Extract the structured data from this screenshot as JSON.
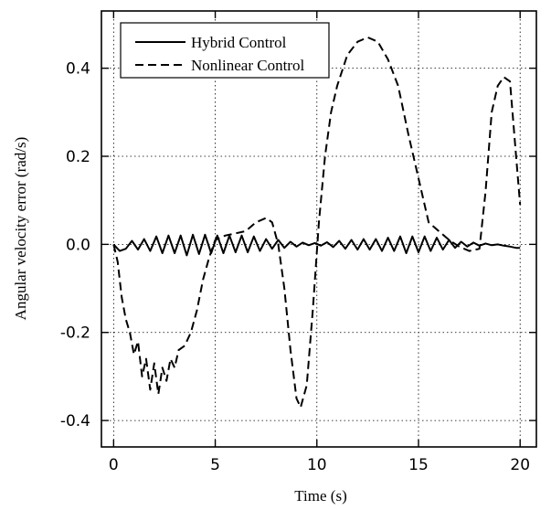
{
  "chart_data": {
    "type": "line",
    "title": "",
    "xlabel": "Time (s)",
    "ylabel": "Angular velocity error (rad/s)",
    "xlim": [
      -0.6,
      20.8
    ],
    "ylim": [
      -0.46,
      0.53
    ],
    "x_ticks": [
      0,
      5,
      10,
      15,
      20
    ],
    "y_ticks": [
      -0.4,
      -0.2,
      0.0,
      0.2,
      0.4
    ],
    "x_tick_labels": [
      "0",
      "5",
      "10",
      "15",
      "20"
    ],
    "y_tick_labels": [
      "-0.4",
      "-0.2",
      "0.0",
      "0.2",
      "0.4"
    ],
    "grid": true,
    "legend_position": "top-left",
    "series": [
      {
        "name": "Hybrid Control",
        "style": "solid",
        "color": "#000000",
        "x": [
          0,
          0.3,
          0.6,
          0.9,
          1.2,
          1.5,
          1.8,
          2.1,
          2.4,
          2.7,
          3.0,
          3.3,
          3.6,
          3.9,
          4.2,
          4.5,
          4.8,
          5.1,
          5.4,
          5.7,
          6.0,
          6.3,
          6.6,
          6.9,
          7.2,
          7.5,
          7.8,
          8.1,
          8.4,
          8.7,
          9.0,
          9.3,
          9.6,
          9.9,
          10.2,
          10.5,
          10.8,
          11.1,
          11.4,
          11.7,
          12.0,
          12.3,
          12.6,
          12.9,
          13.2,
          13.5,
          13.8,
          14.1,
          14.4,
          14.7,
          15.0,
          15.3,
          15.6,
          15.9,
          16.2,
          16.5,
          16.8,
          17.1,
          17.4,
          17.7,
          18.0,
          18.3,
          18.6,
          18.9,
          19.2,
          19.5,
          19.8,
          20.0
        ],
        "y": [
          0.0,
          -0.015,
          -0.01,
          0.008,
          -0.012,
          0.012,
          -0.015,
          0.018,
          -0.02,
          0.02,
          -0.02,
          0.02,
          -0.025,
          0.022,
          -0.022,
          0.022,
          -0.02,
          0.02,
          -0.02,
          0.02,
          -0.018,
          0.02,
          -0.018,
          0.018,
          -0.015,
          0.012,
          -0.01,
          0.01,
          -0.008,
          0.006,
          -0.005,
          0.004,
          -0.002,
          0.003,
          -0.003,
          0.005,
          -0.006,
          0.008,
          -0.01,
          0.01,
          -0.012,
          0.012,
          -0.012,
          0.012,
          -0.015,
          0.015,
          -0.015,
          0.018,
          -0.02,
          0.018,
          -0.018,
          0.018,
          -0.015,
          0.015,
          -0.012,
          0.01,
          -0.008,
          0.006,
          -0.005,
          0.004,
          -0.003,
          0.002,
          -0.002,
          0.0,
          -0.003,
          -0.005,
          -0.008,
          -0.008
        ]
      },
      {
        "name": "Nonlinear Control",
        "style": "dashed",
        "color": "#000000",
        "x": [
          0,
          0.2,
          0.4,
          0.6,
          0.8,
          1.0,
          1.2,
          1.4,
          1.6,
          1.8,
          2.0,
          2.2,
          2.4,
          2.6,
          2.8,
          3.0,
          3.2,
          3.5,
          3.8,
          4.1,
          4.4,
          4.7,
          5.0,
          5.5,
          6.0,
          6.5,
          7.0,
          7.5,
          7.8,
          8.1,
          8.4,
          8.7,
          9.0,
          9.2,
          9.5,
          9.8,
          10.1,
          10.4,
          10.7,
          11.0,
          11.5,
          12.0,
          12.5,
          13.0,
          13.5,
          14.0,
          14.5,
          15.0,
          15.5,
          16.0,
          16.5,
          17.0,
          17.5,
          18.0,
          18.3,
          18.6,
          18.9,
          19.2,
          19.5,
          19.8,
          20.0
        ],
        "y": [
          0.0,
          -0.04,
          -0.12,
          -0.17,
          -0.2,
          -0.25,
          -0.22,
          -0.3,
          -0.26,
          -0.33,
          -0.27,
          -0.34,
          -0.28,
          -0.31,
          -0.26,
          -0.28,
          -0.24,
          -0.23,
          -0.2,
          -0.15,
          -0.08,
          -0.03,
          0.01,
          0.02,
          0.025,
          0.03,
          0.05,
          0.06,
          0.05,
          0.0,
          -0.1,
          -0.24,
          -0.35,
          -0.37,
          -0.32,
          -0.15,
          0.05,
          0.2,
          0.3,
          0.36,
          0.43,
          0.46,
          0.47,
          0.46,
          0.42,
          0.36,
          0.25,
          0.15,
          0.05,
          0.03,
          0.01,
          -0.005,
          -0.015,
          -0.01,
          0.12,
          0.3,
          0.36,
          0.38,
          0.37,
          0.2,
          0.09
        ]
      }
    ]
  },
  "legend": {
    "items": [
      {
        "label": "Hybrid Control",
        "style": "solid"
      },
      {
        "label": "Nonlinear Control",
        "style": "dashed"
      }
    ]
  }
}
